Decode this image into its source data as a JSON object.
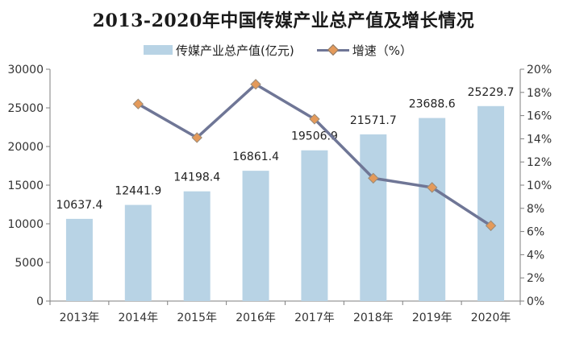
{
  "chart_data": {
    "type": "bar",
    "title": "2013-2020年中国传媒产业总产值及增长情况",
    "categories": [
      "2013年",
      "2014年",
      "2015年",
      "2016年",
      "2017年",
      "2018年",
      "2019年",
      "2020年"
    ],
    "series": [
      {
        "name": "传媒产业总产值(亿元)",
        "type": "bar",
        "axis": "left",
        "color": "#b8d3e5",
        "values": [
          10637.4,
          12441.9,
          14198.4,
          16861.4,
          19506.9,
          21571.7,
          23688.6,
          25229.7
        ],
        "labels": [
          "10637.4",
          "12441.9",
          "14198.4",
          "16861.4",
          "19506.9",
          "21571.7",
          "23688.6",
          "25229.7"
        ]
      },
      {
        "name": "增速（%）",
        "type": "line",
        "axis": "right",
        "color": "#6f7696",
        "marker_color": "#e49a5a",
        "values": [
          null,
          17.0,
          14.1,
          18.7,
          15.7,
          10.6,
          9.8,
          6.5
        ]
      }
    ],
    "y_left": {
      "min": 0,
      "max": 30000,
      "ticks": [
        "0",
        "5000",
        "10000",
        "15000",
        "20000",
        "25000",
        "30000"
      ]
    },
    "y_right": {
      "min": 0,
      "max": 20,
      "ticks": [
        "0%",
        "2%",
        "4%",
        "6%",
        "8%",
        "10%",
        "12%",
        "14%",
        "16%",
        "18%",
        "20%"
      ]
    },
    "grid": false,
    "legend_position": "top"
  }
}
